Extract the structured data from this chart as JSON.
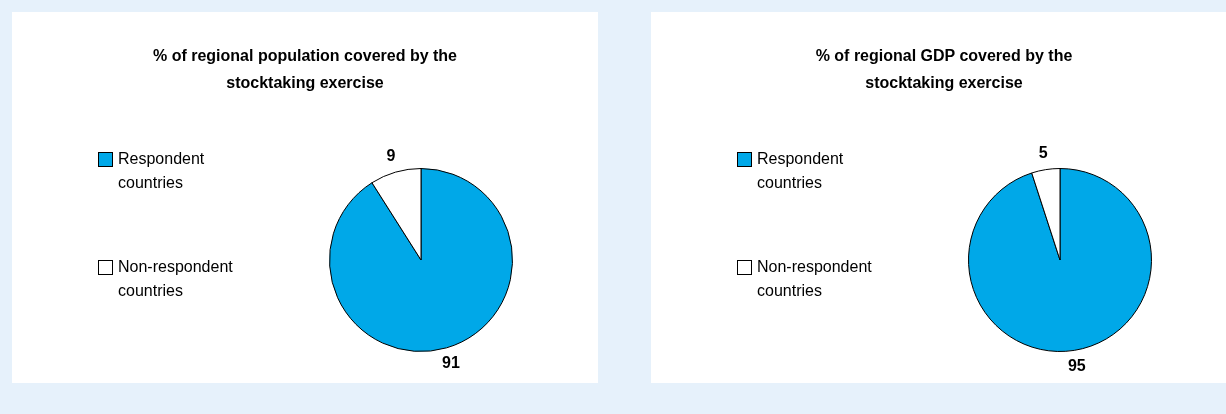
{
  "chart_data": [
    {
      "type": "pie",
      "title": "% of regional population covered by the stocktaking exercise",
      "categories": [
        "Respondent countries",
        "Non-respondent countries"
      ],
      "values": [
        91,
        9
      ],
      "colors": [
        "#00a8e8",
        "#ffffff"
      ],
      "legend": "left",
      "data_labels": true
    },
    {
      "type": "pie",
      "title": "% of regional GDP covered by the stocktaking exercise",
      "categories": [
        "Respondent countries",
        "Non-respondent countries"
      ],
      "values": [
        95,
        5
      ],
      "colors": [
        "#00a8e8",
        "#ffffff"
      ],
      "legend": "left",
      "data_labels": true
    }
  ]
}
